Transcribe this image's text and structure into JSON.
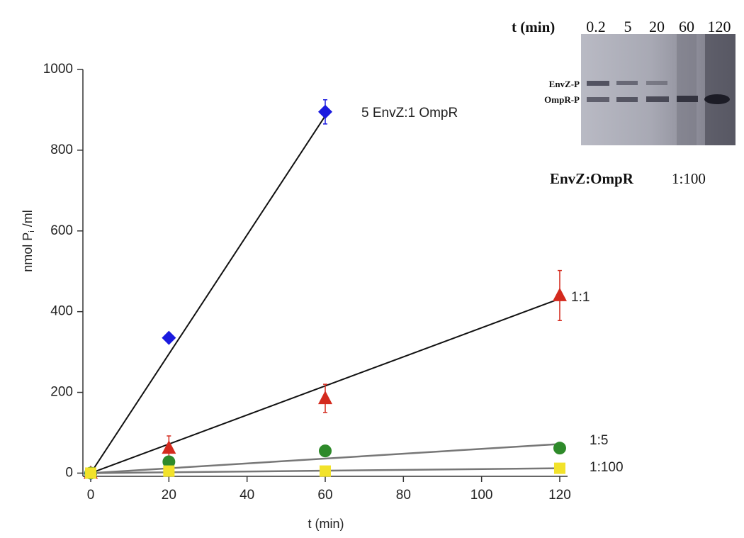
{
  "chart_data": {
    "type": "scatter",
    "x_label": "t (min)",
    "y_label": "nmol P",
    "y_label_sub": "i",
    "y_label_suffix": "/ml",
    "xlim": [
      -2,
      122
    ],
    "xticks": [
      0,
      20,
      40,
      60,
      80,
      100,
      120
    ],
    "ylim": [
      -8,
      1000
    ],
    "yticks": [
      0,
      200,
      400,
      600,
      800,
      1000
    ],
    "series": [
      {
        "name": "5 EnvZ:1 OmpR",
        "color": "#1a1adf",
        "marker": "diamond",
        "x": [
          0,
          20,
          60
        ],
        "values": [
          0,
          335,
          895
        ],
        "errors": [
          0,
          0,
          30
        ],
        "fit_x": [
          0,
          60
        ],
        "fit_y": [
          0,
          885
        ]
      },
      {
        "name": "1:1",
        "color": "#d42a1e",
        "marker": "triangle",
        "x": [
          0,
          20,
          60,
          120
        ],
        "values": [
          0,
          62,
          185,
          440
        ],
        "errors": [
          0,
          30,
          35,
          62
        ],
        "fit_x": [
          0,
          120
        ],
        "fit_y": [
          0,
          432
        ]
      },
      {
        "name": "1:5",
        "color": "#2e8a2a",
        "marker": "circle",
        "x": [
          0,
          20,
          60,
          120
        ],
        "values": [
          0,
          28,
          55,
          62
        ],
        "errors": [
          0,
          0,
          0,
          0
        ],
        "fit_x": [
          0,
          120
        ],
        "fit_y": [
          0,
          72
        ]
      },
      {
        "name": "1:100",
        "color": "#f2e22a",
        "marker": "square",
        "x": [
          0,
          20,
          60,
          120
        ],
        "values": [
          0,
          5,
          5,
          12
        ],
        "errors": [
          0,
          0,
          0,
          0
        ],
        "fit_x": [
          0,
          120
        ],
        "fit_y": [
          0,
          12
        ]
      }
    ]
  },
  "inset": {
    "time_label": "t (min)",
    "lanes": [
      "0.2",
      "5",
      "20",
      "60",
      "120"
    ],
    "bands": [
      "EnvZ-P",
      "OmpR-P"
    ],
    "caption": "EnvZ:OmpR",
    "ratio": "1:100"
  }
}
